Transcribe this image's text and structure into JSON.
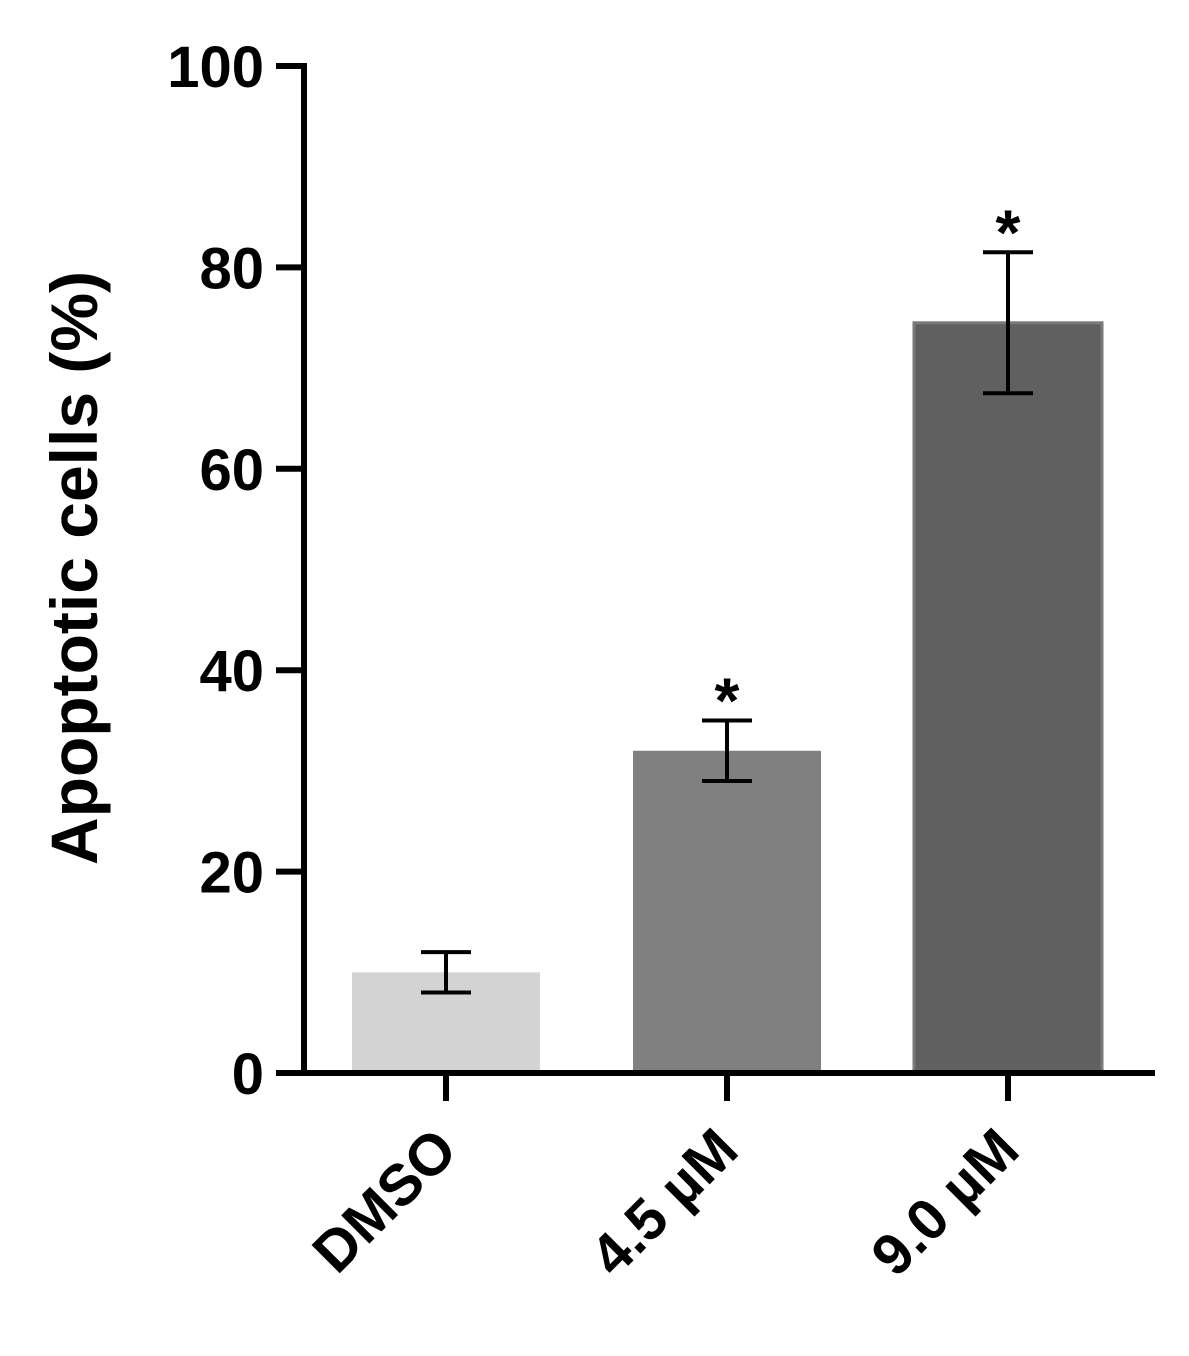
{
  "chart_data": {
    "type": "bar",
    "title": "",
    "xlabel": "",
    "ylabel": "Apoptotic cells (%)",
    "ylim": [
      0,
      100
    ],
    "yticks": [
      0,
      20,
      40,
      60,
      80,
      100
    ],
    "categories": [
      "DMSO",
      "4.5 µM",
      "9.0 µM"
    ],
    "values": [
      10,
      32,
      74.5
    ],
    "errors": [
      2,
      3,
      7
    ],
    "significance": [
      "",
      "*",
      "*"
    ],
    "colors": [
      "#d3d3d3",
      "#808080",
      "#606060"
    ]
  }
}
